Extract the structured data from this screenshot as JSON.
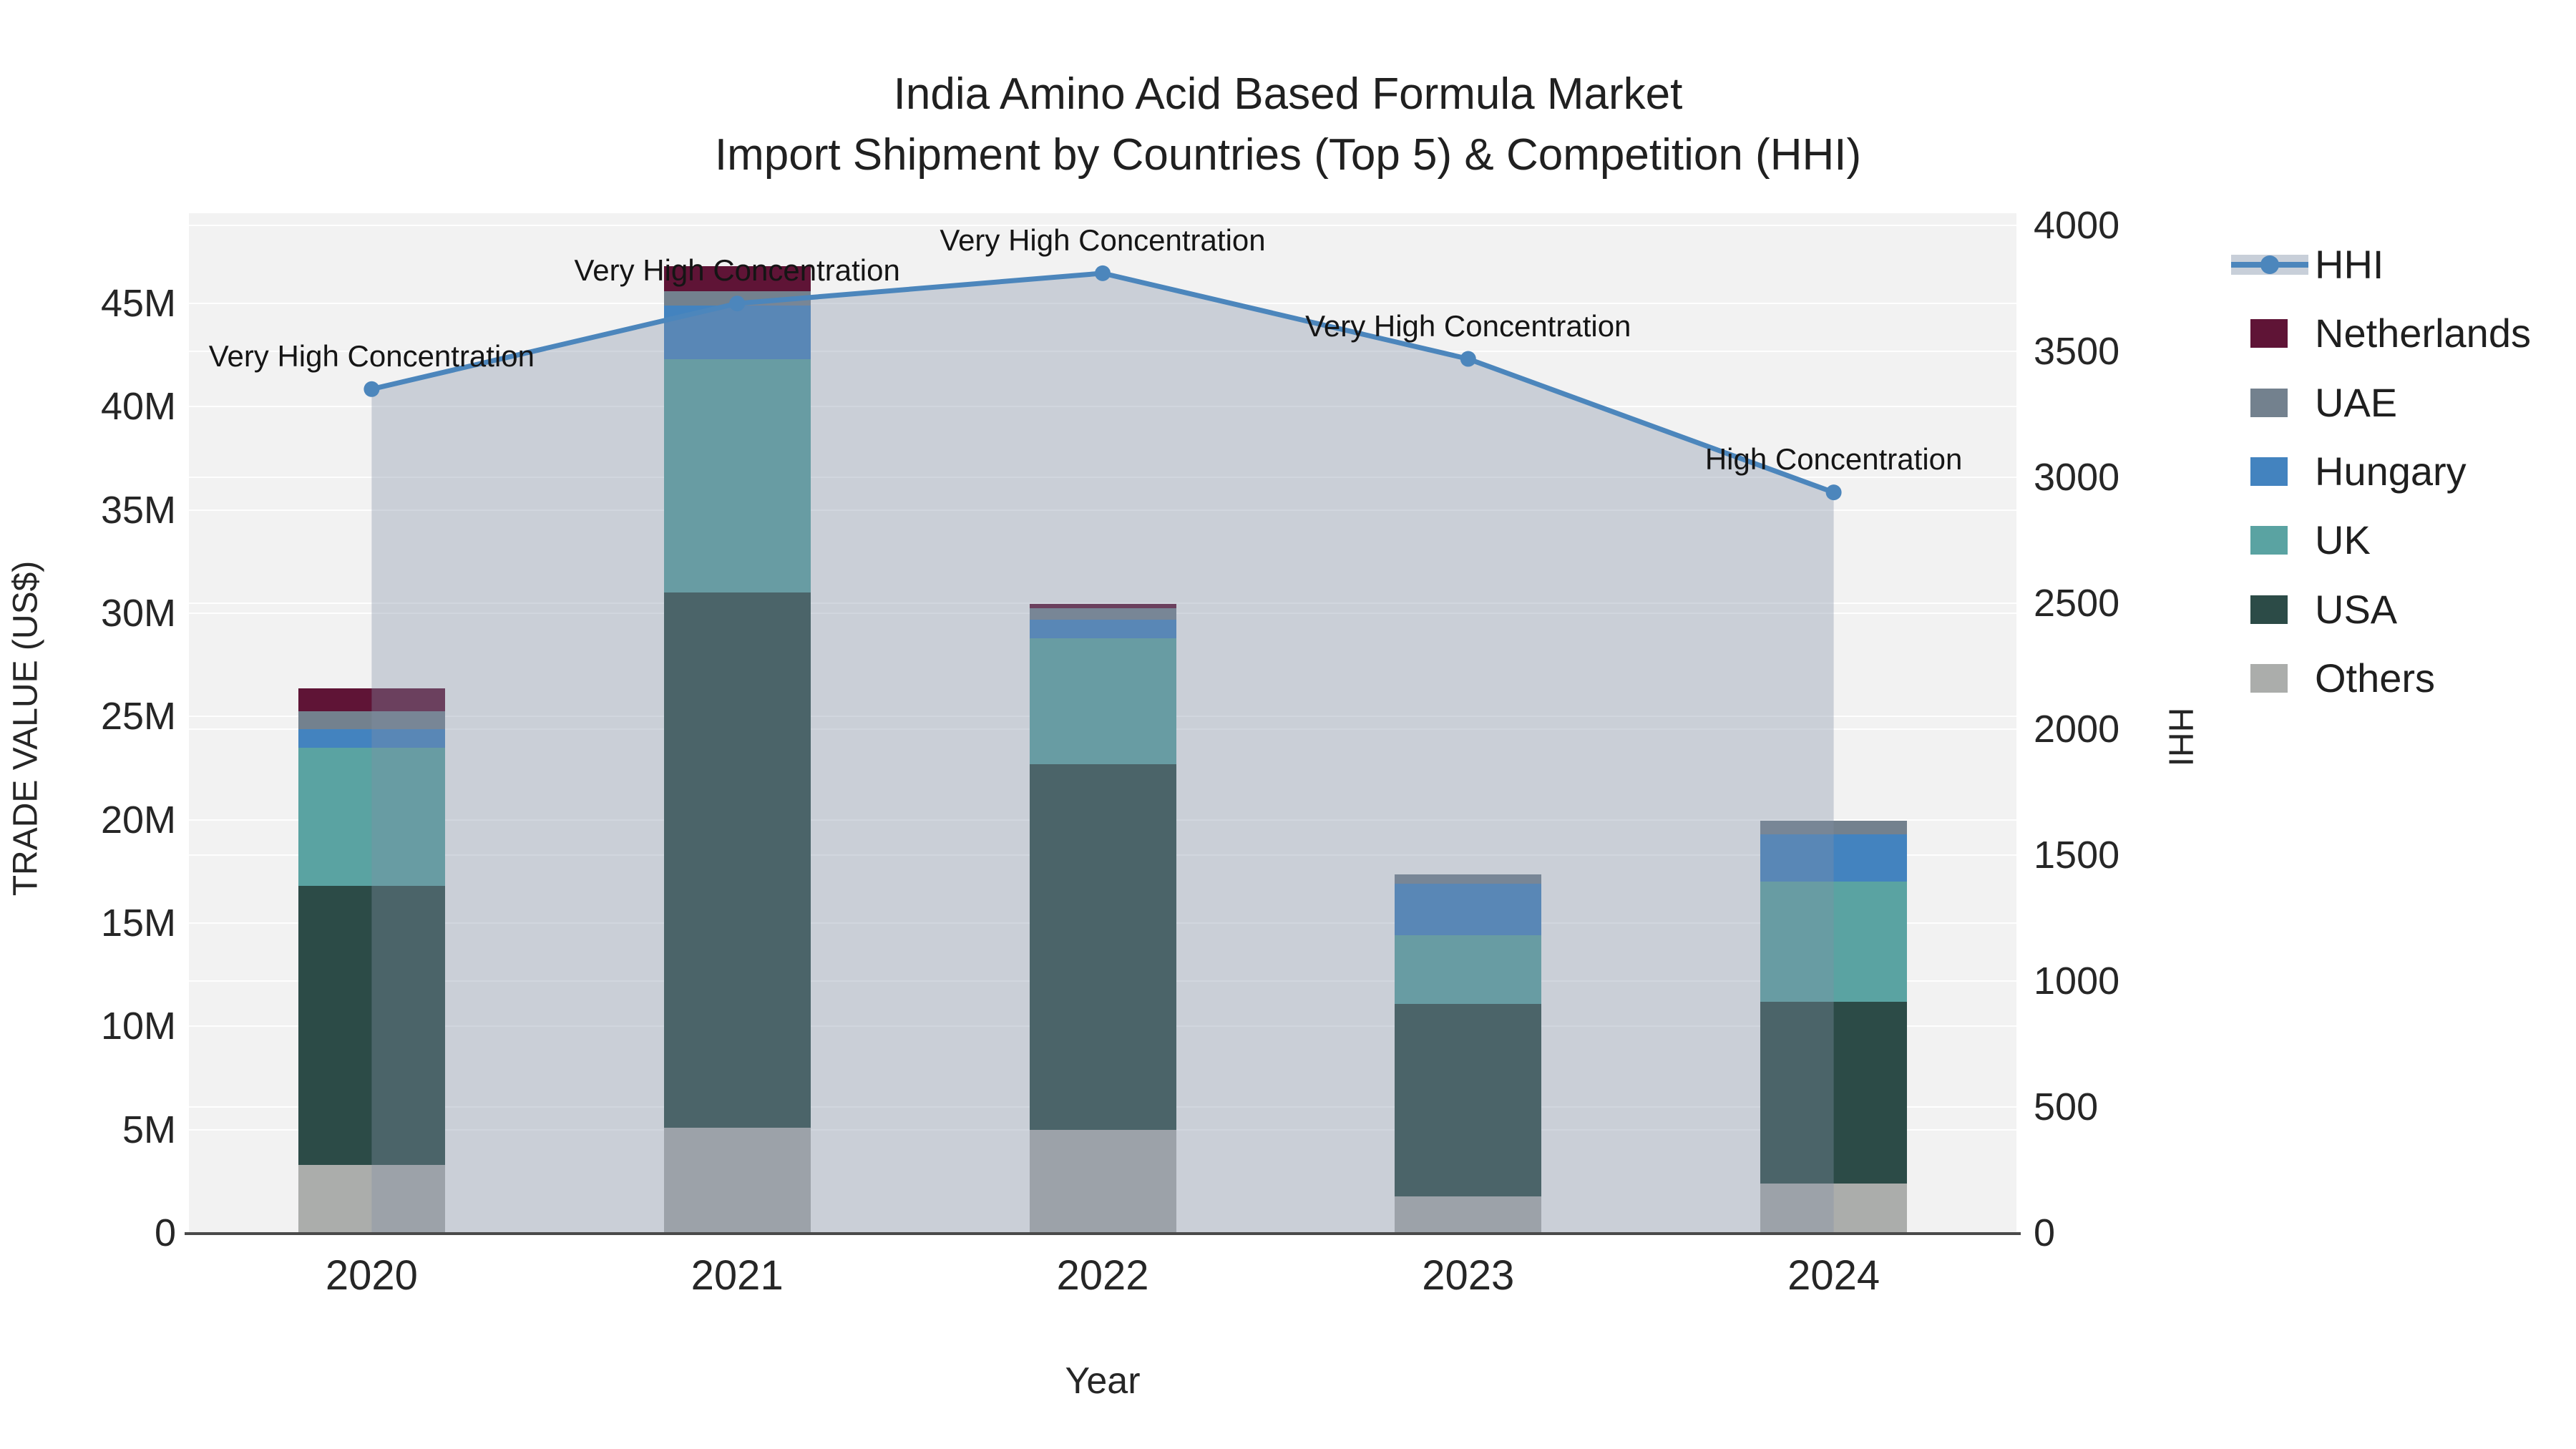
{
  "title": {
    "line1": "India Amino Acid Based Formula Market",
    "line2": "Import Shipment by Countries (Top 5) & Competition (HHI)"
  },
  "axes": {
    "x": {
      "label": "Year",
      "categories": [
        "2020",
        "2021",
        "2022",
        "2023",
        "2024"
      ]
    },
    "y_left": {
      "label": "TRADE VALUE (US$)",
      "tick_labels": [
        "0",
        "5M",
        "10M",
        "15M",
        "20M",
        "25M",
        "30M",
        "35M",
        "40M",
        "45M"
      ],
      "tick_values": [
        0,
        5,
        10,
        15,
        20,
        25,
        30,
        35,
        40,
        45
      ]
    },
    "y_right": {
      "label": "HHI",
      "tick_labels": [
        "0",
        "500",
        "1000",
        "1500",
        "2000",
        "2500",
        "3000",
        "3500",
        "4000"
      ],
      "tick_values": [
        0,
        500,
        1000,
        1500,
        2000,
        2500,
        3000,
        3500,
        4000
      ]
    }
  },
  "chart_data": {
    "type": "composite",
    "subtype": "stacked-bar-with-line",
    "categories": [
      "2020",
      "2021",
      "2022",
      "2023",
      "2024"
    ],
    "bar_unit": "million US$",
    "series": [
      {
        "name": "Others",
        "values": [
          3.3,
          5.1,
          5.0,
          1.75,
          2.4
        ],
        "color": "#ABADAB"
      },
      {
        "name": "USA",
        "values": [
          13.5,
          25.9,
          17.7,
          9.35,
          8.8
        ],
        "color": "#2C4B47"
      },
      {
        "name": "UK",
        "values": [
          6.7,
          11.3,
          6.1,
          3.3,
          5.8
        ],
        "color": "#5AA3A2"
      },
      {
        "name": "Hungary",
        "values": [
          0.9,
          2.6,
          0.9,
          2.5,
          2.3
        ],
        "color": "#4383BF"
      },
      {
        "name": "UAE",
        "values": [
          0.85,
          0.7,
          0.55,
          0.45,
          0.65
        ],
        "color": "#73818E"
      },
      {
        "name": "Netherlands",
        "values": [
          1.1,
          1.2,
          0.2,
          0,
          0
        ],
        "color": "#5F1436"
      }
    ],
    "bar_totals": [
      26.35,
      46.8,
      30.45,
      17.35,
      19.95
    ],
    "line": {
      "name": "HHI",
      "axis": "right",
      "values": [
        3350,
        3690,
        3810,
        3470,
        2940
      ],
      "color": "#4C86BC",
      "area_fill": "rgba(130,145,165,0.36)"
    },
    "annotations": [
      {
        "category": "2020",
        "text": "Very High Concentration"
      },
      {
        "category": "2021",
        "text": "Very High Concentration"
      },
      {
        "category": "2022",
        "text": "Very High Concentration"
      },
      {
        "category": "2023",
        "text": "Very High Concentration"
      },
      {
        "category": "2024",
        "text": "High Concentration"
      }
    ],
    "xlabel": "Year",
    "ylabel_left": "TRADE VALUE (US$)",
    "ylabel_right": "HHI",
    "ylim_left_millions": [
      0,
      49.3
    ],
    "ylim_right": [
      0,
      4000
    ],
    "grid": true,
    "legend_position": "right"
  },
  "legend": {
    "items": [
      {
        "label": "HHI",
        "type": "line",
        "color": "#4C86BC",
        "band_color": "#C8CFD9"
      },
      {
        "label": "Netherlands",
        "type": "swatch",
        "color": "#5F1436"
      },
      {
        "label": "UAE",
        "type": "swatch",
        "color": "#73818E"
      },
      {
        "label": "Hungary",
        "type": "swatch",
        "color": "#4383BF"
      },
      {
        "label": "UK",
        "type": "swatch",
        "color": "#5AA3A2"
      },
      {
        "label": "USA",
        "type": "swatch",
        "color": "#2C4B47"
      },
      {
        "label": "Others",
        "type": "swatch",
        "color": "#ABADAB"
      }
    ]
  },
  "colors": {
    "plot_background": "#f2f2f2",
    "page_background": "#ffffff",
    "gridline": "rgba(255,255,255,0.9)",
    "axis_line": "#4a4a4a",
    "text": "#1f1f1f"
  }
}
